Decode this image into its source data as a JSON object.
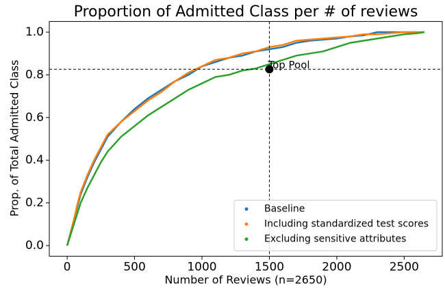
{
  "chart_data": {
    "type": "line",
    "title": "Proportion of Admitted Class per # of reviews",
    "xlabel": "Number of Reviews (n=2650)",
    "ylabel": "Prop. of Total Admitted Class",
    "x": [
      0,
      25,
      50,
      75,
      100,
      150,
      200,
      250,
      300,
      400,
      500,
      600,
      700,
      800,
      900,
      1000,
      1100,
      1200,
      1300,
      1400,
      1500,
      1600,
      1700,
      1800,
      1900,
      2000,
      2100,
      2200,
      2300,
      2400,
      2500,
      2600,
      2650
    ],
    "series": [
      {
        "name": "Baseline",
        "color": "#1f77b4",
        "values": [
          0,
          0.06,
          0.12,
          0.18,
          0.24,
          0.32,
          0.39,
          0.45,
          0.51,
          0.58,
          0.64,
          0.69,
          0.73,
          0.77,
          0.8,
          0.84,
          0.86,
          0.88,
          0.89,
          0.91,
          0.92,
          0.93,
          0.95,
          0.96,
          0.965,
          0.97,
          0.98,
          0.985,
          1.0,
          1.0,
          1.0,
          1.0,
          1.0
        ]
      },
      {
        "name": "Including standardized test scores",
        "color": "#ff7f0e",
        "values": [
          0,
          0.06,
          0.12,
          0.19,
          0.25,
          0.33,
          0.4,
          0.46,
          0.52,
          0.58,
          0.63,
          0.68,
          0.72,
          0.77,
          0.81,
          0.84,
          0.87,
          0.88,
          0.9,
          0.91,
          0.93,
          0.94,
          0.96,
          0.965,
          0.97,
          0.975,
          0.98,
          0.99,
          0.99,
          0.995,
          1.0,
          1.0,
          1.0
        ]
      },
      {
        "name": "Excluding sensitive attributes",
        "color": "#2ca02c",
        "values": [
          0,
          0.05,
          0.1,
          0.15,
          0.2,
          0.27,
          0.33,
          0.39,
          0.44,
          0.51,
          0.56,
          0.61,
          0.65,
          0.69,
          0.73,
          0.76,
          0.79,
          0.8,
          0.82,
          0.83,
          0.85,
          0.87,
          0.89,
          0.9,
          0.91,
          0.93,
          0.95,
          0.96,
          0.97,
          0.98,
          0.99,
          0.995,
          1.0
        ]
      }
    ],
    "vline": 1500,
    "hline": 0.826,
    "annotation": {
      "text": "Top Pool",
      "x": 1500,
      "y": 0.826
    },
    "xlim": [
      -132.5,
      2782.5
    ],
    "xticks": [
      0,
      500,
      1000,
      1500,
      2000,
      2500
    ],
    "ylim": [
      -0.05,
      1.05
    ],
    "yticks": [
      {
        "value": 0,
        "label": "0.0"
      },
      0.2,
      0.4,
      0.6,
      0.8,
      {
        "value": 1,
        "label": "1.0"
      }
    ],
    "legend": "lower right"
  }
}
